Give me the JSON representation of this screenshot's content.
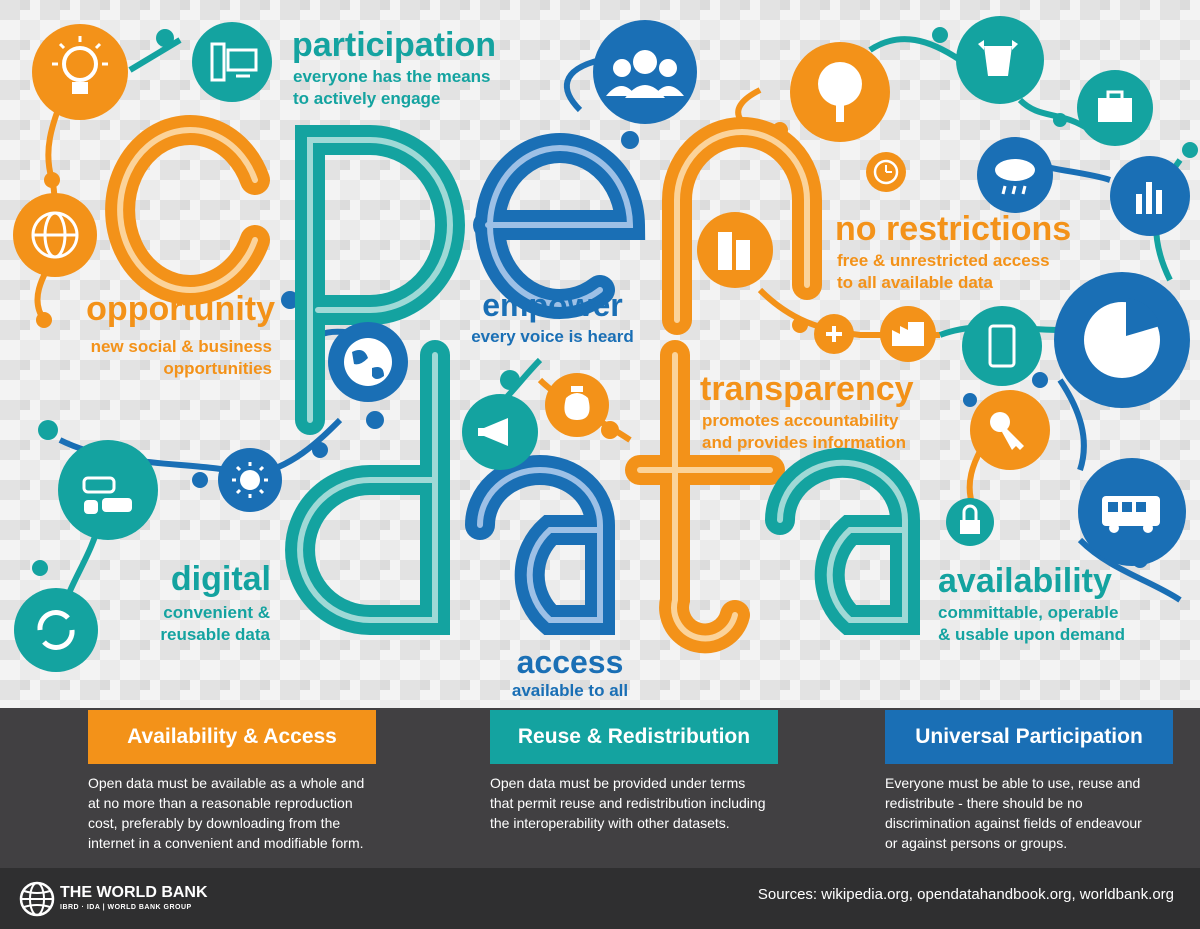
{
  "colors": {
    "teal": "#14a3a0",
    "orange": "#f39219",
    "blue": "#1a6fb5",
    "footer_dark": "#414042",
    "bar_dark": "#2f2f30"
  },
  "headline_letters": [
    "o",
    "p",
    "e",
    "n",
    "d",
    "a",
    "t",
    "a"
  ],
  "concepts": {
    "participation": {
      "title": "participation",
      "line1": "everyone has the means",
      "line2": "to actively engage"
    },
    "opportunity": {
      "title": "opportunity",
      "line1": "new social & business",
      "line2": "opportunities"
    },
    "empower": {
      "title": "empower",
      "line1": "every voice is heard"
    },
    "no_restrictions": {
      "title": "no restrictions",
      "line1": "free & unrestricted access",
      "line2": "to all available data"
    },
    "transparency": {
      "title": "transparency",
      "line1": "promotes accountability",
      "line2": "and provides information"
    },
    "digital": {
      "title": "digital",
      "line1": "convenient &",
      "line2": "reusable data"
    },
    "access": {
      "title": "access",
      "line1": "available to all"
    },
    "availability": {
      "title": "availability",
      "line1": "committable, operable",
      "line2": "& usable upon demand"
    }
  },
  "icons": [
    "lightbulb-icon",
    "computer-icon",
    "people-icon",
    "tree-icon",
    "cow-wheat-icon",
    "briefcase-icon",
    "clock-icon",
    "cloud-rain-icon",
    "bar-chart-icon",
    "globe-grid-icon",
    "buildings-icon",
    "plus-icon",
    "factory-icon",
    "smartphone-icon",
    "pie-chart-icon",
    "earth-icon",
    "money-bag-icon",
    "megaphone-icon",
    "key-icon",
    "cars-icon",
    "sun-icon",
    "lock-icon",
    "bus-icon",
    "refresh-icon"
  ],
  "footer": {
    "sections": [
      {
        "title": "Availability & Access",
        "lines": [
          "Open data must be available as a whole and",
          "at no more than a reasonable reproduction",
          "cost, preferably by downloading from the",
          "internet in a convenient and modifiable form."
        ]
      },
      {
        "title": "Reuse & Redistribution",
        "lines": [
          "Open data must be provided under terms",
          "that permit reuse and redistribution including",
          "the interoperability with other datasets."
        ]
      },
      {
        "title": "Universal Participation",
        "lines": [
          "Everyone must be able to use, reuse and",
          "redistribute - there should be no",
          "discrimination against fields of endeavour",
          "or against persons or groups."
        ]
      }
    ],
    "org_name": "THE WORLD BANK",
    "org_sub": "IBRD · IDA | WORLD BANK GROUP",
    "sources": "Sources: wikipedia.org, opendatahandbook.org, worldbank.org"
  }
}
